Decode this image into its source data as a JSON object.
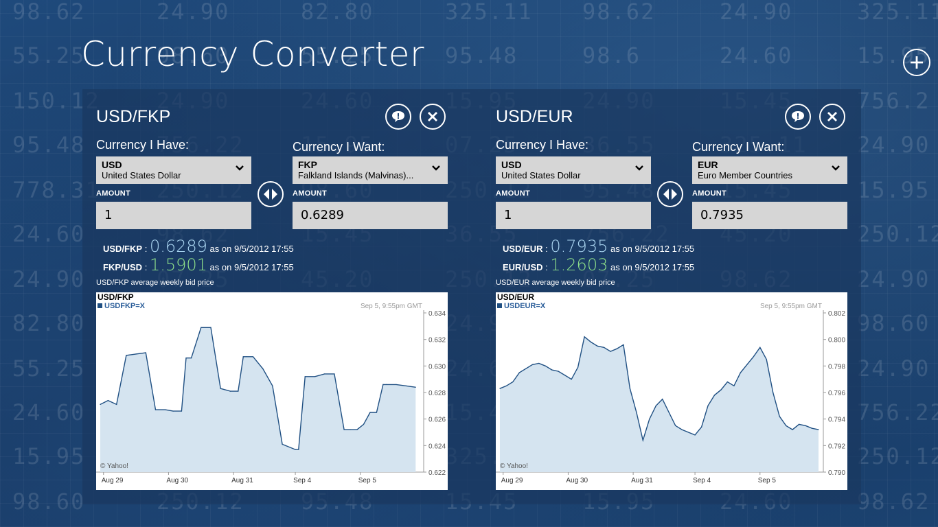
{
  "app": {
    "title": "Currency Converter"
  },
  "background_numbers": [
    "98.62",
    "24.90",
    "82.80",
    "325.11",
    "98.62",
    "24.90",
    "325.11",
    "55.25",
    "98.60",
    "55.25",
    "95.48",
    "98.6",
    "24.60",
    "15.95",
    "150.12",
    "24.90",
    "24.60",
    "15.95",
    "24.90",
    "15.45",
    "756.2",
    "95.48",
    "756.22",
    "15.95",
    "07.25",
    "36.55",
    "325.11",
    "24.90",
    "778.31",
    "250.12",
    "98.60",
    "250.12",
    "95.48",
    "15.45",
    "15.95",
    "24.60",
    "98.62",
    "15.45",
    "36.55",
    "756.22",
    "45.20",
    "250.12",
    "24.90",
    "07.25",
    "45.20",
    "250.12",
    "07.25"
  ],
  "colors": {
    "accent_blue": "#a9d4f0",
    "accent_green": "#8ee08a",
    "field_bg": "#d6d6d6",
    "chart_line": "#1f4f82",
    "chart_fill": "#d5e4f0"
  },
  "icons": {
    "add": "plus-circle-icon",
    "comment": "speech-bubble-icon",
    "close": "close-x-icon",
    "swap": "swap-arrows-icon",
    "dropdown": "chevron-down-icon"
  },
  "cards": [
    {
      "title": "USD/FKP",
      "have_label": "Currency I Have:",
      "want_label": "Currency I Want:",
      "have": {
        "code": "USD",
        "name": "United States Dollar"
      },
      "want": {
        "code": "FKP",
        "name": "Falkland Islands (Malvinas)..."
      },
      "amount_label": "AMOUNT",
      "amount_have": "1",
      "amount_want": "0.6289",
      "rate1": {
        "pair": "USD/FKP",
        "sep": ":",
        "value": "0.6289",
        "as_on": "as on 9/5/2012 17:55"
      },
      "rate2": {
        "pair": "FKP/USD",
        "sep": ":",
        "value": "1.5901",
        "as_on": "as on 9/5/2012 17:55"
      },
      "chart_caption": "USD/FKP average weekly bid price",
      "chart": {
        "title": "USD/FKP",
        "legend": "USDFKP=X",
        "timestamp": "Sep 5, 9:55pm GMT",
        "credit": "© Yahoo!"
      }
    },
    {
      "title": "USD/EUR",
      "have_label": "Currency I Have:",
      "want_label": "Currency I Want:",
      "have": {
        "code": "USD",
        "name": "United States Dollar"
      },
      "want": {
        "code": "EUR",
        "name": "Euro Member Countries"
      },
      "amount_label": "AMOUNT",
      "amount_have": "1",
      "amount_want": "0.7935",
      "rate1": {
        "pair": "USD/EUR",
        "sep": ":",
        "value": "0.7935",
        "as_on": "as on 9/5/2012 17:55"
      },
      "rate2": {
        "pair": "EUR/USD",
        "sep": ":",
        "value": "1.2603",
        "as_on": "as on 9/5/2012 17:55"
      },
      "chart_caption": "USD/EUR average weekly bid price",
      "chart": {
        "title": "USD/EUR",
        "legend": "USDEUR=X",
        "timestamp": "Sep 5, 9:55pm GMT",
        "credit": "© Yahoo!"
      }
    }
  ],
  "chart_data": [
    {
      "type": "area",
      "title": "USD/FKP",
      "series": [
        {
          "name": "USDFKP=X",
          "x": [
            0.0,
            0.12,
            0.25,
            0.4,
            0.55,
            0.7,
            0.85,
            1.0,
            1.12,
            1.25,
            1.32,
            1.4,
            1.55,
            1.7,
            1.85,
            2.0,
            2.12,
            2.2,
            2.25,
            2.35,
            2.5,
            2.65,
            2.8,
            3.0,
            3.05,
            3.15,
            3.3,
            3.45,
            3.6,
            3.75,
            3.85,
            3.95,
            4.05,
            4.15,
            4.25,
            4.35,
            4.4,
            4.55,
            4.7,
            4.85
          ],
          "y": [
            0.6271,
            0.6274,
            0.6271,
            0.6308,
            0.6309,
            0.631,
            0.6267,
            0.6267,
            0.6266,
            0.6266,
            0.6306,
            0.6306,
            0.6329,
            0.6329,
            0.6283,
            0.6281,
            0.6281,
            0.6307,
            0.6307,
            0.6307,
            0.6298,
            0.6285,
            0.6241,
            0.6237,
            0.6237,
            0.6292,
            0.6292,
            0.6294,
            0.6294,
            0.6252,
            0.6252,
            0.6252,
            0.6256,
            0.6265,
            0.6265,
            0.6286,
            0.6286,
            0.6286,
            0.6285,
            0.6284
          ]
        }
      ],
      "x_ticks": [
        "Aug 29",
        "Aug 30",
        "Aug 31",
        "Sep 4",
        "Sep 5"
      ],
      "y_ticks": [
        0.622,
        0.624,
        0.626,
        0.628,
        0.63,
        0.632,
        0.634
      ],
      "ylim": [
        0.622,
        0.634
      ],
      "grid": false,
      "legend": "top-left"
    },
    {
      "type": "area",
      "title": "USD/EUR",
      "series": [
        {
          "name": "USDEUR=X",
          "x": [
            0.0,
            0.1,
            0.2,
            0.3,
            0.4,
            0.5,
            0.6,
            0.7,
            0.8,
            0.9,
            1.0,
            1.1,
            1.2,
            1.3,
            1.4,
            1.5,
            1.6,
            1.7,
            1.8,
            1.9,
            2.0,
            2.1,
            2.2,
            2.3,
            2.4,
            2.5,
            2.6,
            2.7,
            2.8,
            3.0,
            3.1,
            3.2,
            3.3,
            3.4,
            3.5,
            3.6,
            3.7,
            3.8,
            3.9,
            4.0,
            4.1,
            4.2,
            4.3,
            4.4,
            4.5,
            4.6,
            4.7,
            4.8,
            4.9
          ],
          "y": [
            0.7963,
            0.7965,
            0.7968,
            0.7975,
            0.7978,
            0.7981,
            0.7982,
            0.798,
            0.7977,
            0.7976,
            0.7973,
            0.797,
            0.7979,
            0.8002,
            0.7998,
            0.7995,
            0.7994,
            0.7991,
            0.7993,
            0.7996,
            0.7963,
            0.7945,
            0.7924,
            0.794,
            0.795,
            0.7955,
            0.7945,
            0.7935,
            0.7932,
            0.7928,
            0.7934,
            0.795,
            0.7958,
            0.7962,
            0.7968,
            0.7965,
            0.7975,
            0.7981,
            0.7987,
            0.7994,
            0.7985,
            0.796,
            0.7942,
            0.7935,
            0.7932,
            0.7936,
            0.7935,
            0.7933,
            0.7932
          ]
        }
      ],
      "x_ticks": [
        "Aug 29",
        "Aug 30",
        "Aug 31",
        "Sep 4",
        "Sep 5"
      ],
      "y_ticks": [
        0.79,
        0.792,
        0.794,
        0.796,
        0.798,
        0.8,
        0.802
      ],
      "ylim": [
        0.79,
        0.802
      ],
      "grid": false,
      "legend": "top-left"
    }
  ]
}
